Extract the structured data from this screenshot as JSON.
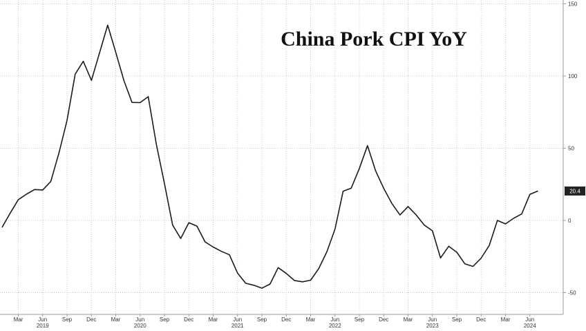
{
  "chart_data": {
    "type": "line",
    "title": "China Pork CPI YoY",
    "ylim": [
      -60,
      150
    ],
    "y_ticks": [
      150,
      100,
      50,
      0,
      -50
    ],
    "y_tick_labels": [
      "150",
      "100",
      "50",
      "0",
      "-50"
    ],
    "x_month_labels": [
      "Mar",
      "Jun",
      "Sep",
      "Dec",
      "Mar",
      "Jun",
      "Sep",
      "Dec",
      "Mar",
      "Jun",
      "Sep",
      "Dec",
      "Mar",
      "Jun",
      "Sep",
      "Dec",
      "Mar",
      "Jun",
      "Sep",
      "Dec",
      "Mar",
      "Jun"
    ],
    "x_year_labels": [
      "2019",
      "2020",
      "2021",
      "2022",
      "2023",
      "2024"
    ],
    "last_value_label": "20.4",
    "grid": true,
    "line_color": "#1a1a1a",
    "series": [
      {
        "x": [
          "2019-01",
          "2019-02",
          "2019-03",
          "2019-04",
          "2019-05",
          "2019-06",
          "2019-07",
          "2019-08",
          "2019-09",
          "2019-10",
          "2019-11",
          "2019-12",
          "2020-01",
          "2020-02",
          "2020-03",
          "2020-04",
          "2020-05",
          "2020-06",
          "2020-07",
          "2020-08",
          "2020-09",
          "2020-10",
          "2020-11",
          "2020-12",
          "2021-01",
          "2021-02",
          "2021-03",
          "2021-04",
          "2021-05",
          "2021-06",
          "2021-07",
          "2021-08",
          "2021-09",
          "2021-10",
          "2021-11",
          "2021-12",
          "2022-01",
          "2022-02",
          "2022-03",
          "2022-04",
          "2022-05",
          "2022-06",
          "2022-07",
          "2022-08",
          "2022-09",
          "2022-10",
          "2022-11",
          "2022-12",
          "2023-01",
          "2023-02",
          "2023-03",
          "2023-04",
          "2023-05",
          "2023-06",
          "2023-07",
          "2023-08",
          "2023-09",
          "2023-10",
          "2023-11",
          "2023-12",
          "2024-01",
          "2024-02",
          "2024-03",
          "2024-04",
          "2024-05",
          "2024-06",
          "2024-07"
        ],
        "values": [
          -4.8,
          5.1,
          14.4,
          18.2,
          21.4,
          21.1,
          27.0,
          46.7,
          69.3,
          101.3,
          110.2,
          97.0,
          116.0,
          135.2,
          116.4,
          96.9,
          81.7,
          81.6,
          85.7,
          52.6,
          25.5,
          -3.2,
          -12.5,
          -1.6,
          -3.9,
          -14.9,
          -18.4,
          -21.4,
          -23.8,
          -36.5,
          -43.5,
          -44.9,
          -46.9,
          -44.0,
          -32.7,
          -36.7,
          -41.6,
          -42.5,
          -41.4,
          -33.3,
          -21.7,
          -6.0,
          20.2,
          22.4,
          36.0,
          51.8,
          34.4,
          22.2,
          11.8,
          3.8,
          9.6,
          3.8,
          -3.2,
          -7.2,
          -26.0,
          -17.9,
          -22.0,
          -30.1,
          -31.8,
          -26.1,
          -17.3,
          0.0,
          -2.4,
          1.5,
          4.5,
          18.1,
          20.4
        ]
      }
    ]
  }
}
